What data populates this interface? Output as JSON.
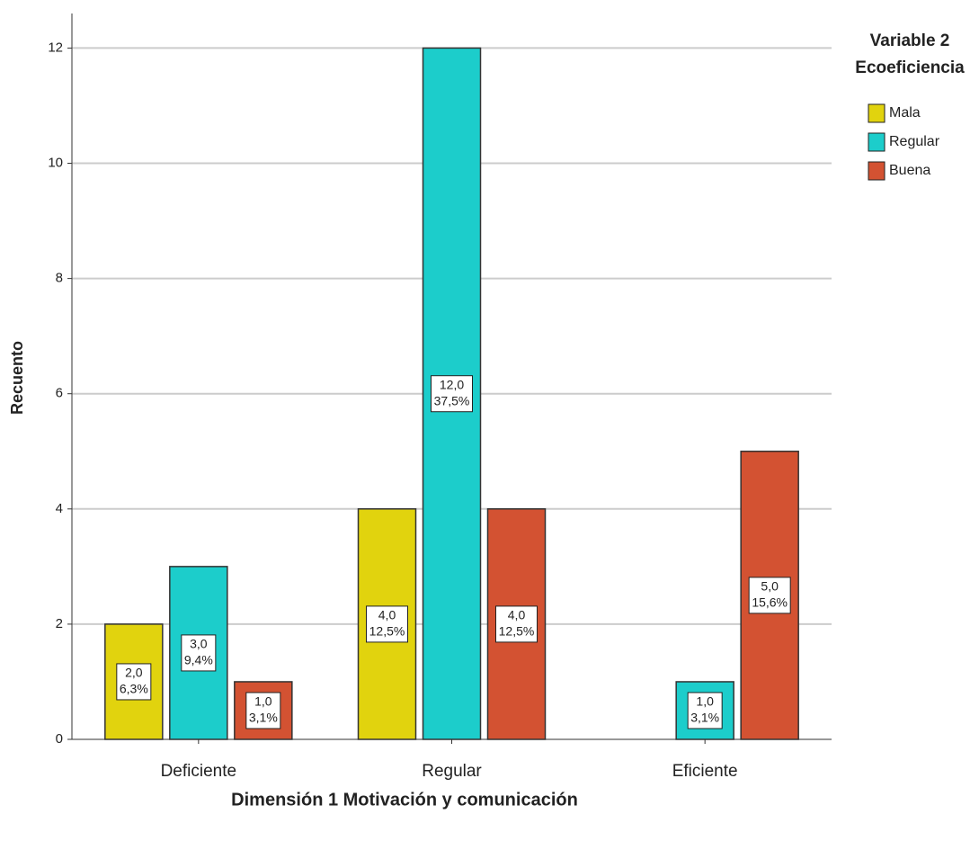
{
  "chart_data": {
    "type": "bar",
    "x_label": "Dimensión 1 Motivación y comunicación",
    "y_label": "Recuento",
    "legend_title": [
      "Variable 2",
      "Ecoeficiencia"
    ],
    "legend": "right",
    "categories": [
      "Deficiente",
      "Regular",
      "Eficiente"
    ],
    "series": [
      {
        "name": "Mala",
        "color": "#e1d30e",
        "values": [
          2,
          4,
          null
        ],
        "value_labels": [
          "2,0",
          "4,0",
          null
        ],
        "percent_labels": [
          "6,3%",
          "12,5%",
          null
        ]
      },
      {
        "name": "Regular",
        "color": "#1ccdcb",
        "values": [
          3,
          12,
          1
        ],
        "value_labels": [
          "3,0",
          "12,0",
          "1,0"
        ],
        "percent_labels": [
          "9,4%",
          "37,5%",
          "3,1%"
        ]
      },
      {
        "name": "Buena",
        "color": "#d35232",
        "values": [
          1,
          4,
          5
        ],
        "value_labels": [
          "1,0",
          "4,0",
          "5,0"
        ],
        "percent_labels": [
          "3,1%",
          "12,5%",
          "15,6%"
        ]
      }
    ],
    "ylim": [
      0,
      12.6
    ],
    "yticks": [
      0,
      2,
      4,
      6,
      8,
      10,
      12
    ],
    "grid": true
  }
}
